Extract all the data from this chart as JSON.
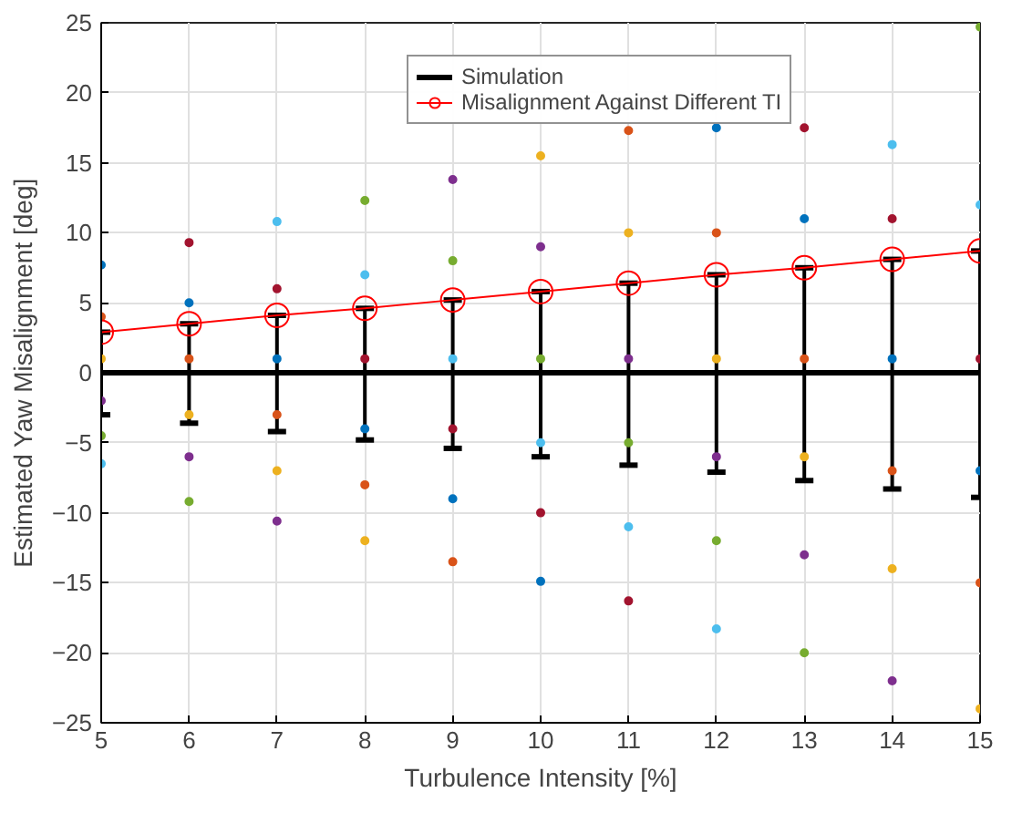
{
  "chart_data": {
    "type": "line",
    "xlabel": "Turbulence Intensity [%]",
    "ylabel": "Estimated Yaw Misalignment [deg]",
    "xlim": [
      5,
      15
    ],
    "ylim": [
      -25,
      25
    ],
    "xticks": [
      5,
      6,
      7,
      8,
      9,
      10,
      11,
      12,
      13,
      14,
      15
    ],
    "yticks": [
      -25,
      -20,
      -15,
      -10,
      -5,
      0,
      5,
      10,
      15,
      20,
      25
    ],
    "grid": true,
    "legend": "top right",
    "series": [
      {
        "type": "scatter",
        "marker": "circle",
        "x": [
          5,
          5,
          5,
          5,
          5,
          5,
          6,
          6,
          6,
          6,
          6,
          6,
          7,
          7,
          7,
          7,
          7,
          7,
          8,
          8,
          8,
          8,
          8,
          8,
          9,
          9,
          9,
          9,
          9,
          9,
          10,
          10,
          10,
          10,
          10,
          10,
          11,
          11,
          11,
          11,
          11,
          11,
          12,
          12,
          12,
          12,
          12,
          12,
          13,
          13,
          13,
          13,
          13,
          13,
          14,
          14,
          14,
          14,
          14,
          14,
          15,
          15,
          15,
          15,
          15,
          15
        ],
        "values": [
          7.7,
          4,
          1,
          -2,
          -4.5,
          -6.5,
          9.3,
          5,
          1,
          -3,
          -6,
          -9.2,
          10.8,
          6,
          1,
          -3,
          -7,
          -10.6,
          12.3,
          7,
          1,
          -4,
          -8,
          -12,
          13.8,
          8,
          1,
          -4,
          -9,
          -13.5,
          15.5,
          9,
          1,
          -5,
          -10,
          -14.9,
          17.3,
          10,
          1,
          -5,
          -11,
          -16.3,
          17.5,
          10,
          1,
          -6,
          -12,
          -18.3,
          17.5,
          11,
          1,
          -6,
          -13,
          -20,
          16.3,
          11,
          1,
          -7,
          -14,
          -22,
          24.7,
          12,
          1,
          -7,
          -15,
          -24
        ],
        "colors": [
          "#0072bd",
          "#d95319",
          "#edb120",
          "#7e2f8e",
          "#77ac30",
          "#4dbeee",
          "#a2142f",
          "#0072bd",
          "#d95319",
          "#edb120",
          "#7e2f8e",
          "#77ac30",
          "#4dbeee",
          "#a2142f",
          "#0072bd",
          "#d95319",
          "#edb120",
          "#7e2f8e",
          "#77ac30",
          "#4dbeee",
          "#a2142f",
          "#0072bd",
          "#d95319",
          "#edb120",
          "#7e2f8e",
          "#77ac30",
          "#4dbeee",
          "#a2142f",
          "#0072bd",
          "#d95319",
          "#edb120",
          "#7e2f8e",
          "#77ac30",
          "#4dbeee",
          "#a2142f",
          "#0072bd",
          "#d95319",
          "#edb120",
          "#7e2f8e",
          "#77ac30",
          "#4dbeee",
          "#a2142f",
          "#0072bd",
          "#d95319",
          "#edb120",
          "#7e2f8e",
          "#77ac30",
          "#4dbeee",
          "#a2142f",
          "#0072bd",
          "#d95319",
          "#edb120",
          "#7e2f8e",
          "#77ac30",
          "#4dbeee",
          "#a2142f",
          "#0072bd",
          "#d95319",
          "#edb120",
          "#7e2f8e",
          "#77ac30",
          "#4dbeee",
          "#a2142f",
          "#0072bd",
          "#d95319",
          "#edb120"
        ]
      },
      {
        "name": "Simulation",
        "color": "#000000",
        "marker": "none",
        "x": [
          5,
          6,
          7,
          8,
          9,
          10,
          11,
          12,
          13,
          14,
          15
        ],
        "values": [
          0,
          0,
          0,
          0,
          0,
          0,
          0,
          0,
          0,
          0,
          0
        ],
        "errors": [
          [
            -3,
            2.9
          ],
          [
            -3.6,
            3.5
          ],
          [
            -4.2,
            4.1
          ],
          [
            -4.8,
            4.6
          ],
          [
            -5.4,
            5.2
          ],
          [
            -6,
            5.8
          ],
          [
            -6.6,
            6.4
          ],
          [
            -7.1,
            7
          ],
          [
            -7.7,
            7.5
          ],
          [
            -8.3,
            8.1
          ],
          [
            -8.9,
            8.7
          ]
        ]
      },
      {
        "type": "line",
        "name": "Misalignment Against Different TI",
        "color": "#ff0000",
        "marker": "circle",
        "x": [
          5,
          6,
          7,
          8,
          9,
          10,
          11,
          12,
          13,
          14,
          15
        ],
        "values": [
          2.9,
          3.5,
          4.1,
          4.6,
          5.2,
          5.8,
          6.4,
          7,
          7.5,
          8.1,
          8.7
        ]
      }
    ]
  }
}
